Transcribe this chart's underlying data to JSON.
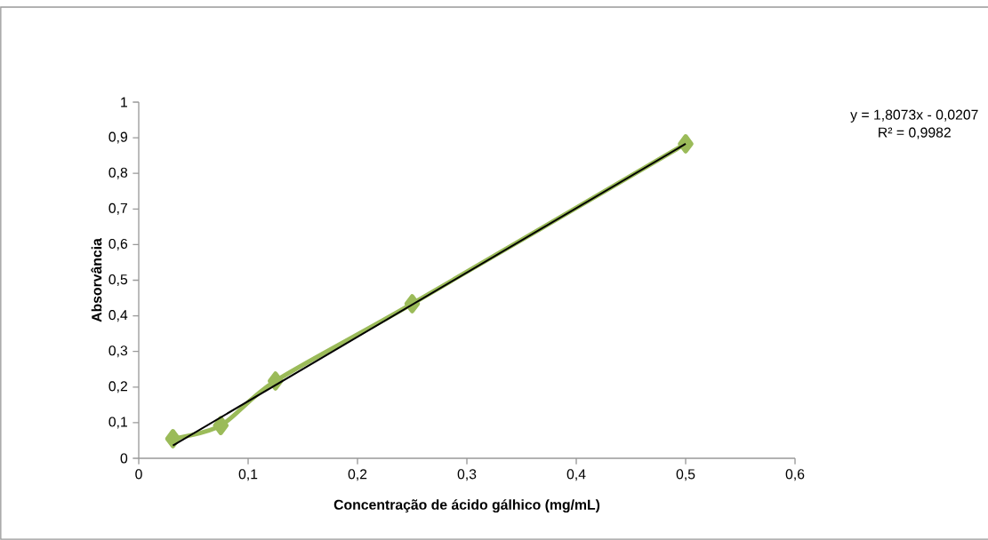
{
  "chart_data": {
    "type": "line",
    "xlabel": "Concentração de ácido gálhico (mg/mL)",
    "ylabel": "Absorvância",
    "series": [
      {
        "color": "#9bbb59",
        "marker": "diamond",
        "x": [
          0.03125,
          0.075,
          0.125,
          0.25,
          0.5
        ],
        "values": [
          0.055,
          0.092,
          0.217,
          0.434,
          0.883
        ]
      },
      {
        "color": "#000000",
        "marker": "none",
        "x": [
          0.03125,
          0.5
        ],
        "values": [
          0.036,
          0.883
        ]
      }
    ],
    "xlim": [
      0,
      0.6
    ],
    "ylim": [
      0,
      1
    ],
    "xticks": [
      0,
      {
        "value": 0.1,
        "label": "0,1"
      },
      {
        "value": 0.2,
        "label": "0,2"
      },
      {
        "value": 0.3,
        "label": "0,3"
      },
      {
        "value": 0.4,
        "label": "0,4"
      },
      {
        "value": 0.5,
        "label": "0,5"
      },
      {
        "value": 0.6,
        "label": "0,6"
      }
    ],
    "yticks": [
      0,
      {
        "value": 0.1,
        "label": "0,1"
      },
      {
        "value": 0.2,
        "label": "0,2"
      },
      {
        "value": 0.3,
        "label": "0,3"
      },
      {
        "value": 0.4,
        "label": "0,4"
      },
      {
        "value": 0.5,
        "label": "0,5"
      },
      {
        "value": 0.6,
        "label": "0,6"
      },
      {
        "value": 0.7,
        "label": "0,7"
      },
      {
        "value": 0.8,
        "label": "0,8"
      },
      {
        "value": 0.9,
        "label": "0,9"
      },
      1
    ],
    "annotations": [
      "y = 1,8073x - 0,0207",
      "R² = 0,9982"
    ],
    "grid": false
  }
}
